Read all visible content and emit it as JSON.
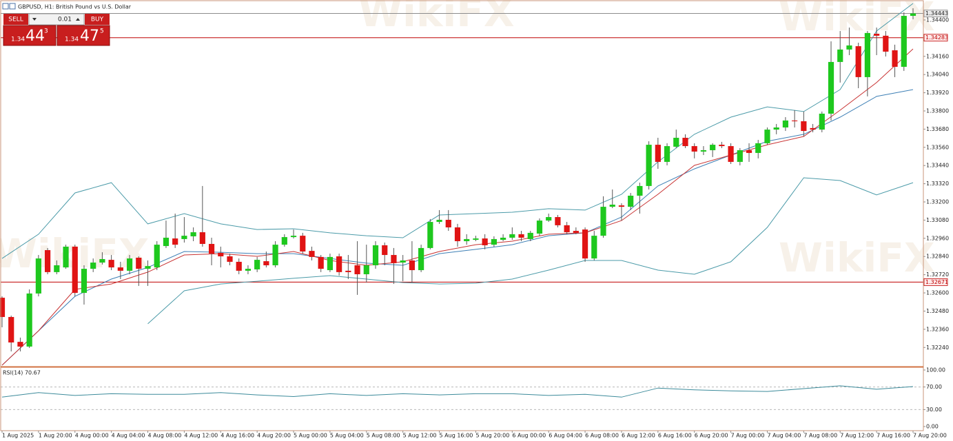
{
  "title": "GBPUSD, H1:  British Pound vs U.S. Dollar",
  "watermark": "WikiFX",
  "ui": {
    "sell": "SELL",
    "lot": "0.01",
    "buy": "BUY",
    "bid": {
      "big": "1.34",
      "main": "44",
      "pip": "3"
    },
    "ask": {
      "big": "1.34",
      "main": "47",
      "pip": "5"
    }
  },
  "chart_data": [
    {
      "type": "candlestick",
      "categories": [
        "1 Aug 2025",
        null,
        null,
        null,
        "1 Aug 20:00",
        null,
        null,
        null,
        "4 Aug 00:00",
        null,
        null,
        null,
        "4 Aug 04:00",
        null,
        null,
        null,
        "4 Aug 08:00",
        null,
        null,
        null,
        "4 Aug 12:00",
        null,
        null,
        null,
        "4 Aug 16:00",
        null,
        null,
        null,
        "4 Aug 20:00",
        null,
        null,
        null,
        "5 Aug 00:00",
        null,
        null,
        null,
        "5 Aug 04:00",
        null,
        null,
        null,
        "5 Aug 08:00",
        null,
        null,
        null,
        "5 Aug 12:00",
        null,
        null,
        null,
        "5 Aug 16:00",
        null,
        null,
        null,
        "5 Aug 20:00",
        null,
        null,
        null,
        "6 Aug 00:00",
        null,
        null,
        null,
        "6 Aug 04:00",
        null,
        null,
        null,
        "6 Aug 08:00",
        null,
        null,
        null,
        "6 Aug 12:00",
        null,
        null,
        null,
        "6 Aug 16:00",
        null,
        null,
        null,
        "6 Aug 20:00",
        null,
        null,
        null,
        "7 Aug 00:00",
        null,
        null,
        null,
        "7 Aug 04:00",
        null,
        null,
        null,
        "7 Aug 08:00",
        null,
        null,
        null,
        "7 Aug 12:00",
        null,
        null,
        null,
        "7 Aug 16:00",
        null,
        null,
        null,
        "7 Aug 20:00"
      ],
      "open": [
        1.32568,
        1.32441,
        1.32277,
        1.32246,
        1.32596,
        1.32882,
        1.32737,
        1.32768,
        1.32905,
        1.326,
        1.32759,
        1.328,
        1.32818,
        1.32768,
        1.32746,
        1.32832,
        1.32759,
        1.32768,
        1.32909,
        1.32959,
        1.32955,
        1.32973,
        1.33,
        1.32923,
        1.32864,
        1.32841,
        1.32805,
        1.32746,
        1.32755,
        1.32809,
        1.32782,
        1.32918,
        1.32968,
        1.32977,
        1.32877,
        1.32837,
        1.3275,
        1.32841,
        1.32746,
        1.32782,
        1.32723,
        1.32782,
        1.32914,
        1.3285,
        1.328,
        1.32814,
        1.3275,
        1.32896,
        1.33068,
        1.33082,
        1.33032,
        1.32941,
        1.3295,
        1.32959,
        1.32918,
        1.3295,
        1.32964,
        1.32987,
        1.32955,
        1.32991,
        1.33077,
        1.331,
        1.33046,
        1.33009,
        1.33018,
        1.32827,
        1.32977,
        1.33168,
        1.33177,
        1.33168,
        1.33241,
        1.33305,
        1.33577,
        1.33464,
        1.33564,
        1.33623,
        1.33568,
        1.33532,
        1.33541,
        1.33577,
        1.33568,
        1.33464,
        1.33541,
        1.33523,
        1.33587,
        1.33677,
        1.33691,
        1.33737,
        1.33732,
        1.33687,
        1.33677,
        1.33782,
        1.34123,
        1.34205,
        1.34227,
        1.34023,
        1.34309,
        1.34296,
        1.342,
        1.34091,
        1.34427
      ],
      "high": [
        1.32577,
        1.3245,
        1.32305,
        1.32623,
        1.3285,
        1.32896,
        1.32814,
        1.32918,
        1.32918,
        1.32782,
        1.32827,
        1.32868,
        1.3285,
        1.32805,
        1.3285,
        1.32841,
        1.32814,
        1.32941,
        1.33077,
        1.33123,
        1.331,
        1.33032,
        1.33305,
        1.32964,
        1.32905,
        1.32859,
        1.32827,
        1.32782,
        1.32837,
        1.32873,
        1.32941,
        1.32987,
        1.33018,
        1.32996,
        1.32905,
        1.3285,
        1.32859,
        1.32859,
        1.3285,
        1.32941,
        1.32918,
        1.32941,
        1.32932,
        1.32896,
        1.3285,
        1.32941,
        1.32918,
        1.33087,
        1.33146,
        1.33146,
        1.33055,
        1.32987,
        1.32977,
        1.32987,
        1.32973,
        1.32987,
        1.33032,
        1.33009,
        1.33009,
        1.33091,
        1.33123,
        1.33114,
        1.33068,
        1.33032,
        1.33032,
        1.33009,
        1.33237,
        1.33282,
        1.33191,
        1.33259,
        1.33327,
        1.336,
        1.33623,
        1.33587,
        1.33677,
        1.33646,
        1.33587,
        1.33568,
        1.33587,
        1.33596,
        1.33587,
        1.33555,
        1.33587,
        1.33609,
        1.33691,
        1.33714,
        1.33759,
        1.33805,
        1.33796,
        1.33714,
        1.33796,
        1.34259,
        1.34327,
        1.3435,
        1.3425,
        1.34327,
        1.3435,
        1.34327,
        1.34237,
        1.3445,
        1.34477
      ],
      "low": [
        1.32373,
        1.32214,
        1.32214,
        1.32237,
        1.32577,
        1.32723,
        1.32723,
        1.32759,
        1.32577,
        1.32523,
        1.32737,
        1.32787,
        1.3275,
        1.32691,
        1.32723,
        1.32646,
        1.32646,
        1.3275,
        1.32896,
        1.32896,
        1.32932,
        1.32941,
        1.32905,
        1.32782,
        1.32768,
        1.32782,
        1.32723,
        1.32723,
        1.32737,
        1.32768,
        1.32768,
        1.32905,
        1.32959,
        1.32859,
        1.32814,
        1.32737,
        1.32737,
        1.32714,
        1.32691,
        1.32587,
        1.32668,
        1.32759,
        1.32782,
        1.32659,
        1.32677,
        1.32668,
        1.32737,
        1.32887,
        1.33055,
        1.33009,
        1.32905,
        1.32918,
        1.32941,
        1.32887,
        1.32905,
        1.32941,
        1.3295,
        1.32941,
        1.32941,
        1.32977,
        1.33068,
        1.33032,
        1.32987,
        1.32987,
        1.32805,
        1.32814,
        1.32964,
        1.33159,
        1.33077,
        1.33146,
        1.33123,
        1.33282,
        1.33418,
        1.33441,
        1.33555,
        1.33555,
        1.33487,
        1.33509,
        1.33496,
        1.33555,
        1.3345,
        1.33441,
        1.33464,
        1.33487,
        1.33577,
        1.33646,
        1.33668,
        1.33691,
        1.33632,
        1.33659,
        1.33659,
        1.33737,
        1.33987,
        1.34168,
        1.3395,
        1.33896,
        1.34168,
        1.34159,
        1.34023,
        1.34064,
        1.34405
      ],
      "close": [
        1.32441,
        1.32273,
        1.32246,
        1.32596,
        1.32827,
        1.32737,
        1.32782,
        1.32905,
        1.326,
        1.32759,
        1.328,
        1.32823,
        1.32768,
        1.32746,
        1.32827,
        1.32759,
        1.32777,
        1.32918,
        1.32964,
        1.32918,
        1.32977,
        1.33,
        1.32923,
        1.32859,
        1.32841,
        1.32805,
        1.32746,
        1.32759,
        1.32818,
        1.32782,
        1.32918,
        1.32968,
        1.32977,
        1.32873,
        1.32837,
        1.32759,
        1.32837,
        1.32737,
        1.32737,
        1.32723,
        1.32782,
        1.32914,
        1.3285,
        1.32796,
        1.32814,
        1.3275,
        1.32896,
        1.33068,
        1.33082,
        1.33032,
        1.32941,
        1.32955,
        1.32959,
        1.32914,
        1.32955,
        1.32964,
        1.32987,
        1.32964,
        1.32996,
        1.33077,
        1.331,
        1.33046,
        1.33,
        1.32996,
        1.32827,
        1.32977,
        1.33168,
        1.33182,
        1.33168,
        1.33241,
        1.33305,
        1.33577,
        1.33464,
        1.33568,
        1.33623,
        1.33568,
        1.33532,
        1.33541,
        1.33577,
        1.33568,
        1.33464,
        1.33541,
        1.33523,
        1.33587,
        1.33677,
        1.33691,
        1.33737,
        1.33732,
        1.33668,
        1.33677,
        1.33782,
        1.34123,
        1.34205,
        1.34232,
        1.34023,
        1.34314,
        1.34296,
        1.34191,
        1.34091,
        1.34427,
        1.34443
      ],
      "up_color": "#1ec81e",
      "down_color": "#e01414",
      "overlays": [
        {
          "color": "#4a9aa8",
          "x": [
            0,
            4,
            8,
            12,
            16,
            20,
            24,
            28,
            32,
            36,
            40,
            44,
            48,
            52,
            56,
            60,
            64,
            68,
            72,
            76,
            80,
            84,
            88,
            92,
            96,
            100
          ],
          "values": [
            1.32827,
            1.32987,
            1.33259,
            1.33327,
            1.33055,
            1.33123,
            1.33055,
            1.33018,
            1.33023,
            1.32996,
            1.32977,
            1.32964,
            1.33114,
            1.33123,
            1.33132,
            1.33155,
            1.33146,
            1.3325,
            1.33464,
            1.33646,
            1.33759,
            1.33827,
            1.33796,
            1.33941,
            1.34327,
            1.34509
          ]
        },
        {
          "color": "#3d7fb5",
          "x": [
            0,
            4,
            8,
            12,
            16,
            20,
            24,
            28,
            32,
            36,
            40,
            44,
            48,
            52,
            56,
            60,
            64,
            68,
            72,
            76,
            80,
            84,
            88,
            92,
            96,
            100
          ],
          "values": [
            1.32123,
            1.3235,
            1.32577,
            1.32691,
            1.32768,
            1.32873,
            1.32868,
            1.32859,
            1.32859,
            1.32827,
            1.32796,
            1.32782,
            1.32859,
            1.32887,
            1.32918,
            1.32977,
            1.32996,
            1.331,
            1.33305,
            1.33418,
            1.33509,
            1.336,
            1.33646,
            1.33759,
            1.33896,
            1.33941
          ]
        },
        {
          "color": "#4a9aa8",
          "x": [
            0,
            4,
            8,
            12,
            16,
            20,
            24,
            28,
            32,
            36,
            40,
            44,
            48,
            52,
            56,
            60,
            64,
            68,
            72,
            76,
            80,
            84,
            88,
            92,
            96,
            100
          ],
          "values": [
            null,
            null,
            null,
            null,
            1.32396,
            1.32614,
            1.32659,
            1.32677,
            1.32696,
            1.32714,
            1.32691,
            1.32668,
            1.32659,
            1.32664,
            1.32691,
            1.3275,
            1.32814,
            1.32814,
            1.3275,
            1.32723,
            1.32805,
            1.33032,
            1.33359,
            1.33341,
            1.33246,
            1.33327
          ]
        },
        {
          "color": "#c83232",
          "x": [
            0,
            4,
            8,
            12,
            16,
            20,
            24,
            28,
            32,
            36,
            40,
            44,
            48,
            52,
            56,
            60,
            64,
            68,
            72,
            76,
            80,
            84,
            88,
            92,
            96,
            100
          ],
          "values": [
            1.32123,
            1.3235,
            1.32623,
            1.32659,
            1.32737,
            1.3285,
            1.32859,
            1.32841,
            1.32873,
            1.32814,
            1.32782,
            1.32805,
            1.32873,
            1.32918,
            1.32941,
            1.32987,
            1.32996,
            1.33077,
            1.3325,
            1.33441,
            1.33509,
            1.33577,
            1.33632,
            1.33805,
            1.33987,
            1.34209
          ]
        }
      ],
      "price_lines": [
        {
          "value": 1.34443,
          "color": "#8c8c8c"
        },
        {
          "value": 1.34283,
          "color": "#c00000"
        },
        {
          "value": 1.32671,
          "color": "#c00000"
        }
      ],
      "ylim": [
        1.32114,
        1.34518
      ],
      "yticks": [
        {
          "value": 1.3224,
          "label": "1.32240"
        },
        {
          "value": 1.3236,
          "label": "1.32360"
        },
        {
          "value": 1.3248,
          "label": "1.32480"
        },
        {
          "value": 1.326,
          "label": "1.32600"
        },
        {
          "value": 1.3272,
          "label": "1.32720"
        },
        {
          "value": 1.3284,
          "label": "1.32840"
        },
        {
          "value": 1.3296,
          "label": "1.32960"
        },
        {
          "value": 1.3308,
          "label": "1.33080"
        },
        {
          "value": 1.332,
          "label": "1.33200"
        },
        {
          "value": 1.3332,
          "label": "1.33320"
        },
        {
          "value": 1.3344,
          "label": "1.33440"
        },
        {
          "value": 1.3356,
          "label": "1.33560"
        },
        {
          "value": 1.3368,
          "label": "1.33680"
        },
        {
          "value": 1.338,
          "label": "1.33800"
        },
        {
          "value": 1.3392,
          "label": "1.33920"
        },
        {
          "value": 1.3404,
          "label": "1.34040"
        },
        {
          "value": 1.3416,
          "label": "1.34160"
        },
        {
          "value": 1.344,
          "label": "1.34400"
        }
      ]
    },
    {
      "type": "line",
      "title": "RSI(14) 70.67",
      "series": [
        {
          "color": "#3b8a9a",
          "x": [
            0,
            4,
            8,
            12,
            16,
            20,
            24,
            28,
            32,
            36,
            40,
            44,
            48,
            52,
            56,
            60,
            64,
            68,
            72,
            76,
            80,
            84,
            88,
            92,
            96,
            100
          ],
          "values": [
            52,
            60,
            55,
            58,
            57,
            57,
            60,
            56,
            53,
            58,
            55,
            58,
            56,
            58,
            58,
            55,
            57,
            52,
            68,
            65,
            63,
            62,
            67,
            72,
            66,
            70.67
          ]
        }
      ],
      "levels": [
        70,
        30
      ],
      "ylim": [
        -7.3,
        102.4
      ],
      "yticks": [
        {
          "value": 100,
          "label": "100.00"
        },
        {
          "value": 70,
          "label": "70.00"
        },
        {
          "value": 30,
          "label": "30.00"
        },
        {
          "value": 0,
          "label": "0.00"
        }
      ]
    }
  ]
}
